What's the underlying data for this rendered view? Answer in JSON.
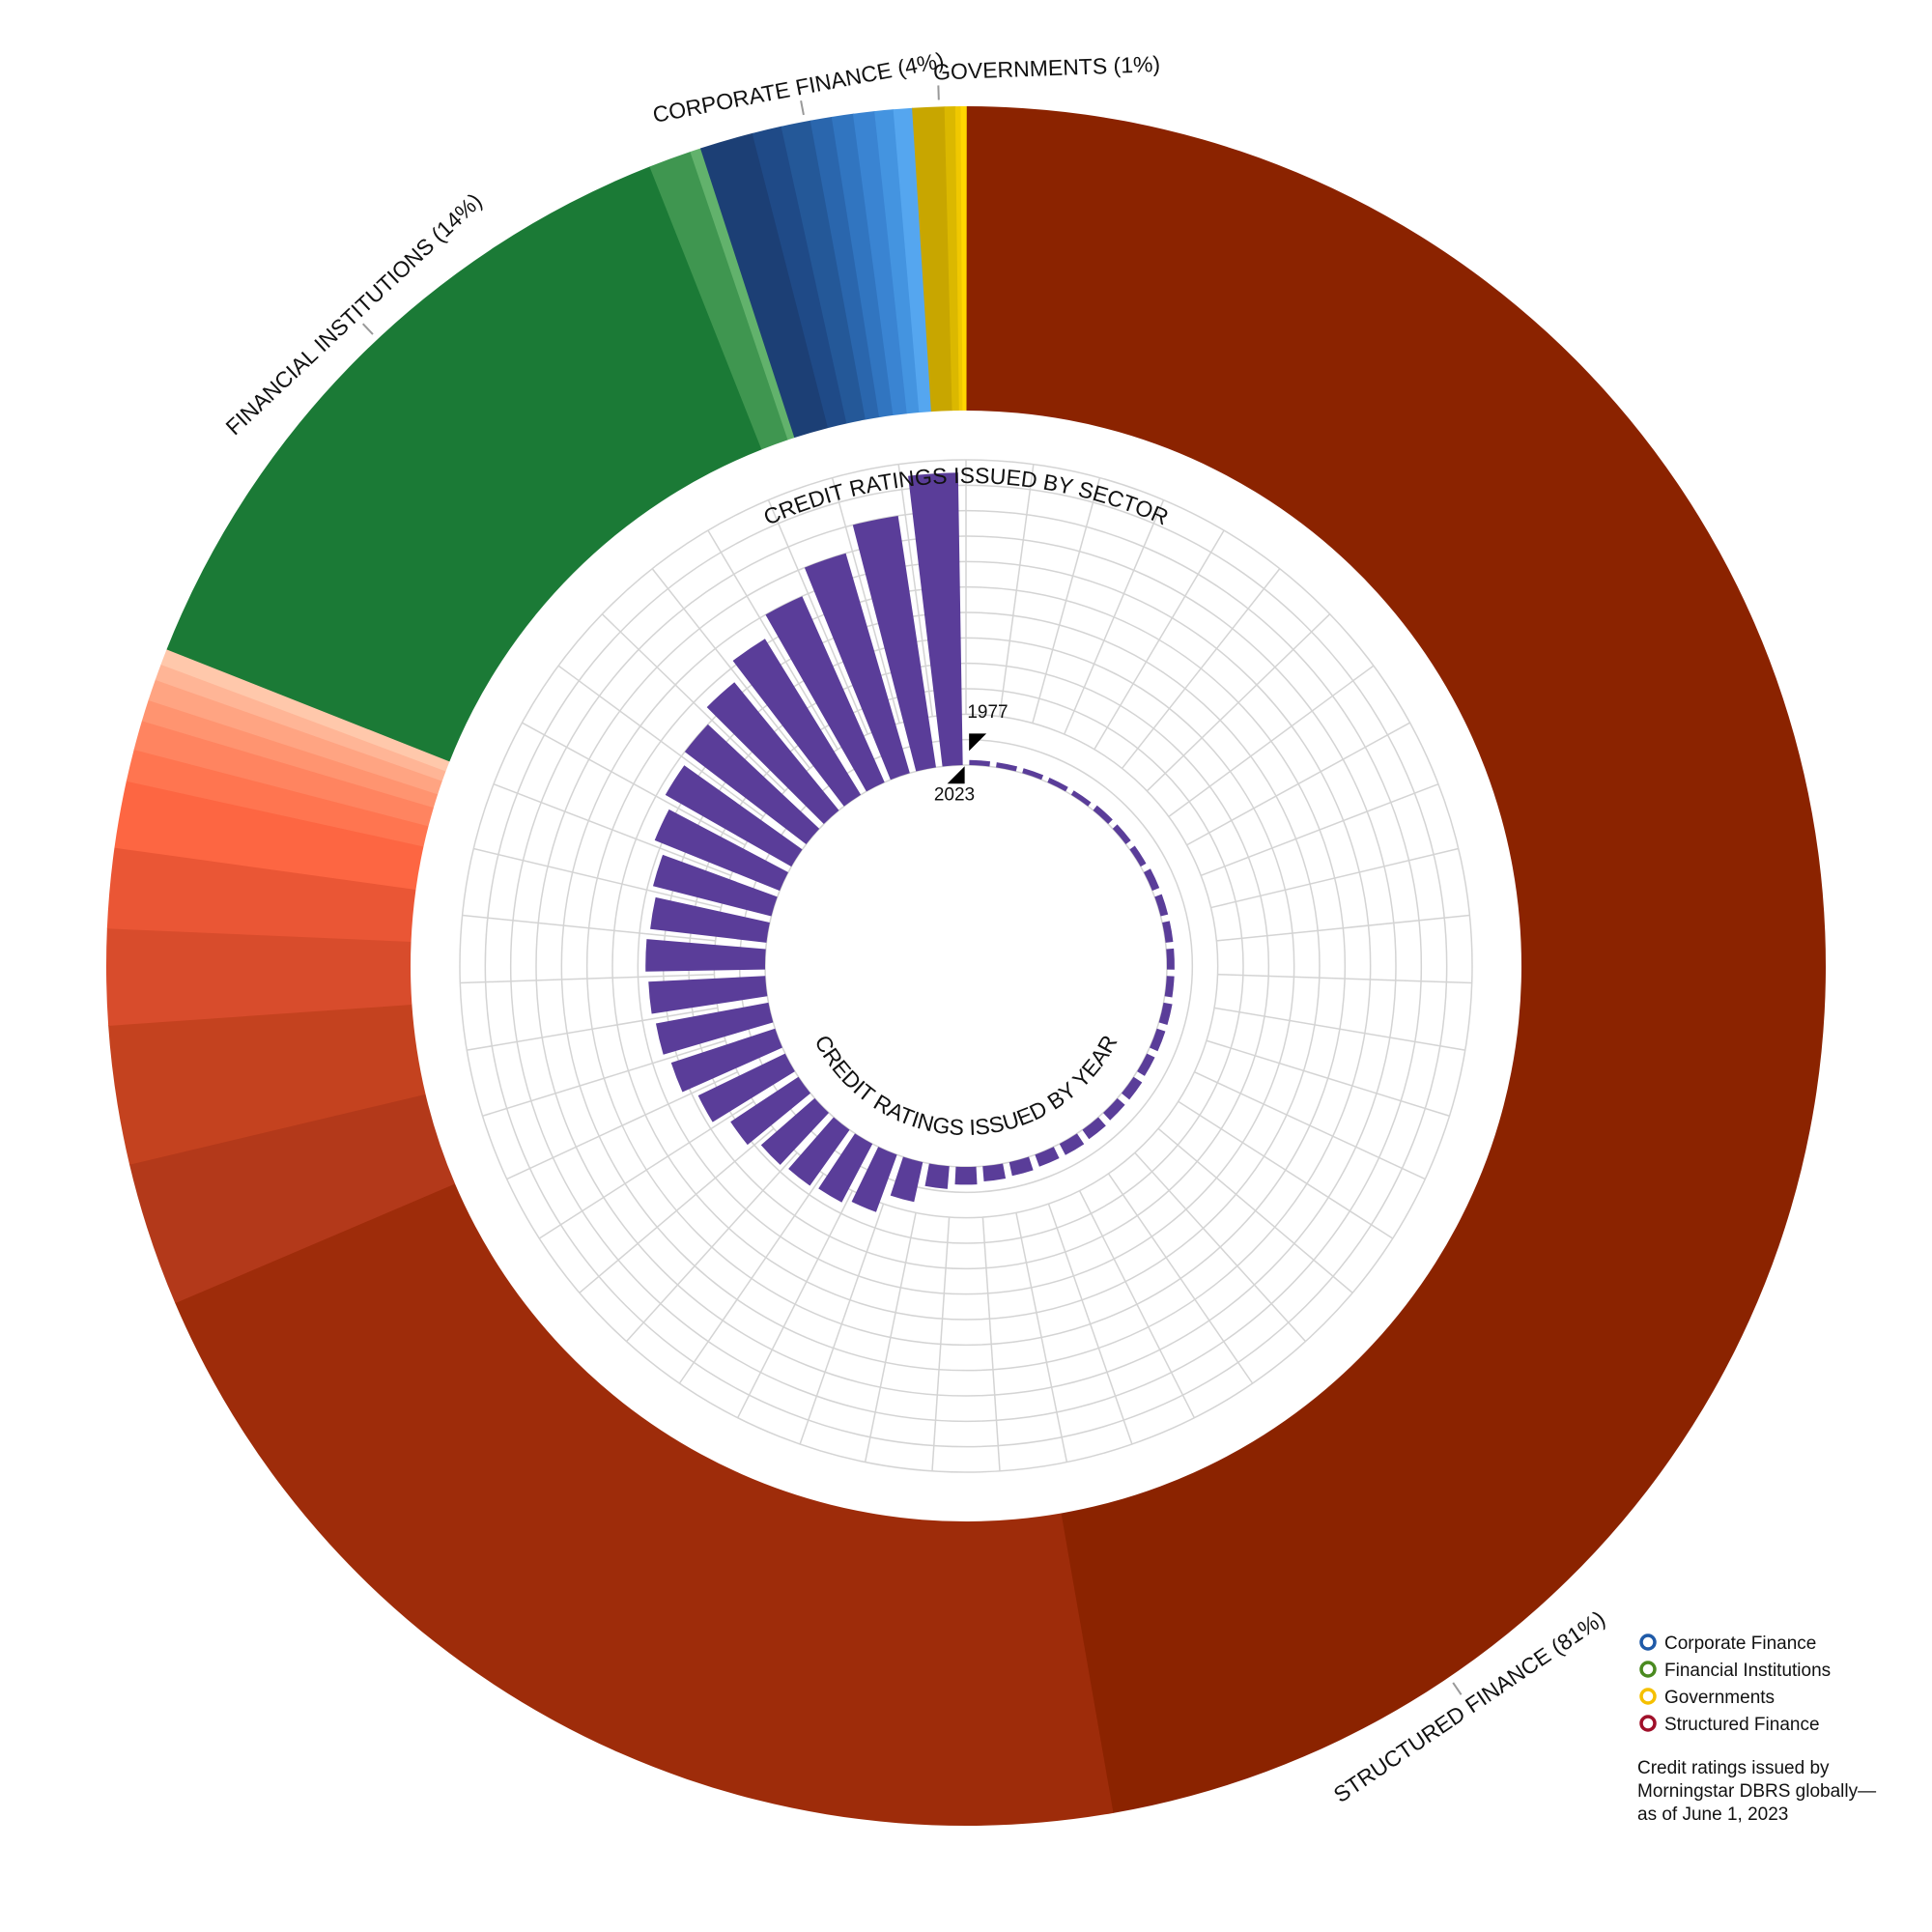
{
  "chart_data": [
    {
      "type": "sunburst",
      "title": "CREDIT RATINGS ISSUED BY SECTOR",
      "series": [
        {
          "label": "STRUCTURED FINANCE (81%)",
          "value": 81,
          "slices": [
            47.2,
            21.3,
            2.7,
            2.6,
            1.8,
            1.5,
            1.25,
            0.6,
            0.55,
            0.4,
            0.4,
            0.3,
            0.3
          ],
          "colors": [
            "#8b2300",
            "#9e2c0a",
            "#b3391a",
            "#c4421f",
            "#d84c2c",
            "#ea5635",
            "#fd6642",
            "#ff7550",
            "#ff8460",
            "#ff9470",
            "#ffa482",
            "#ffb596",
            "#ffc8ab"
          ]
        },
        {
          "label": "FINANCIAL INSTITUTIONS (14%)",
          "value": 14,
          "slices": [
            13.0,
            0.8,
            0.2
          ],
          "colors": [
            "#1b7a36",
            "#3f9650",
            "#62b26c"
          ]
        },
        {
          "label": "CORPORATE FINANCE (4%)",
          "value": 4,
          "slices": [
            1.0,
            0.55,
            0.55,
            0.4,
            0.4,
            0.4,
            0.35,
            0.35
          ],
          "colors": [
            "#1c3f75",
            "#1f4a87",
            "#245898",
            "#2a66ad",
            "#3175c0",
            "#3a84d2",
            "#4494e0",
            "#55a6ef"
          ]
        },
        {
          "label": "GOVERNMENTS (1%)",
          "value": 1,
          "slices": [
            0.6,
            0.2,
            0.1,
            0.1
          ],
          "colors": [
            "#c8a600",
            "#dbb800",
            "#f0c800",
            "#ffd700"
          ]
        }
      ],
      "legend": [
        {
          "name": "Corporate Finance",
          "color": "#1f5aa8"
        },
        {
          "name": "Financial Institutions",
          "color": "#4a8a20"
        },
        {
          "name": "Governments",
          "color": "#f5c000"
        },
        {
          "name": "Structured Finance",
          "color": "#a0102a"
        }
      ],
      "note": [
        "Credit ratings issued by",
        "Morningstar DBRS globally—",
        "as of June 1, 2023"
      ]
    },
    {
      "type": "radial-bar",
      "title": "CREDIT RATINGS ISSUED BY YEAR",
      "categories": [
        "1977",
        null,
        null,
        null,
        null,
        null,
        null,
        null,
        null,
        null,
        null,
        null,
        null,
        null,
        null,
        null,
        null,
        null,
        null,
        null,
        null,
        null,
        null,
        null,
        null,
        null,
        null,
        null,
        null,
        null,
        null,
        null,
        null,
        null,
        null,
        null,
        null,
        null,
        null,
        null,
        null,
        null,
        null,
        null,
        null,
        null,
        "2023"
      ],
      "values": [
        0.2,
        0.2,
        0.2,
        0.2,
        0.2,
        0.25,
        0.25,
        0.25,
        0.3,
        0.3,
        0.3,
        0.3,
        0.3,
        0.35,
        0.35,
        0.35,
        0.4,
        0.4,
        0.45,
        0.5,
        0.5,
        0.55,
        0.6,
        0.7,
        0.9,
        1.6,
        2.4,
        2.6,
        2.7,
        2.8,
        3.2,
        3.8,
        4.3,
        4.5,
        4.6,
        4.7,
        4.6,
        4.8,
        5.3,
        5.7,
        6,
        6.5,
        7.2,
        8,
        9,
        10,
        11.5
      ],
      "color": "#5a3d99",
      "ylim": [
        0,
        12
      ],
      "grid": true
    }
  ]
}
